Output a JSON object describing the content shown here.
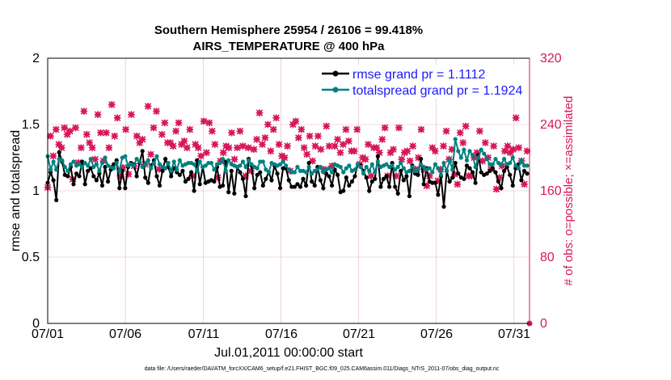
{
  "chart_data": {
    "type": "line",
    "title_line1": "Southern Hemisphere 25954 / 26106 = 99.418%",
    "title_line2": "AIRS_TEMPERATURE @ 400 hPa",
    "xlabel": "Jul.01,2011 00:00:00 start",
    "ylabel_left": "rmse and totalspread",
    "ylabel_right": "# of obs: o=possible; ×=assimilated",
    "footer": "data file: /Users/raeder/DAI/ATM_forcXX/CAM6_setup/f.e21.FHIST_BGC.f09_025.CAM6assim.011/Diags_NTrS_2011-07/obs_diag_output.nc",
    "xlim": [
      0,
      31
    ],
    "ylim_left": [
      0,
      2
    ],
    "ylim_right": [
      0,
      320
    ],
    "x_ticks": [
      0,
      5,
      10,
      15,
      20,
      25,
      30
    ],
    "x_tick_labels": [
      "07/01",
      "07/06",
      "07/11",
      "07/16",
      "07/21",
      "07/26",
      "07/31"
    ],
    "y_left_ticks": [
      "0",
      "0.5",
      "1",
      "1.5",
      "2"
    ],
    "y_right_ticks": [
      "0",
      "80",
      "160",
      "240",
      "320"
    ],
    "legend": [
      "rmse grand pr = 1.1112",
      "totalspread grand pr = 1.1924"
    ],
    "colors": {
      "rmse": "#000000",
      "spread": "#008080",
      "obs": "#d6185a",
      "legend_text": "#1a1aff",
      "grid": "#e6b8b8"
    },
    "series": [
      {
        "name": "rmse",
        "values": [
          1.06,
          1.14,
          1.08,
          0.93,
          1.29,
          1.22,
          1.12,
          1.11,
          1.18,
          1.05,
          1.13,
          1.11,
          1.22,
          1.05,
          1.15,
          1.17,
          1.11,
          1.08,
          1.13,
          1.04,
          1.18,
          1.07,
          1.16,
          1.2,
          1.23,
          1.02,
          1.15,
          1.02,
          1.18,
          1.21,
          1.2,
          1.11,
          1.21,
          1.3,
          1.1,
          1.06,
          1.19,
          1.23,
          1.11,
          1.04,
          1.15,
          1.24,
          1.18,
          1.11,
          1.17,
          1.14,
          1.12,
          1.15,
          1.07,
          1.09,
          1.14,
          1.0,
          1.23,
          1.05,
          1.18,
          1.06,
          1.07,
          1.08,
          1.07,
          1.18,
          1.03,
          1.04,
          1.22,
          0.99,
          1.15,
          0.98,
          1.18,
          1.14,
          1.09,
          0.96,
          1.24,
          1.19,
          1.02,
          1.12,
          1.14,
          1.04,
          1.09,
          1.14,
          1.08,
          1.19,
          1.13,
          1.02,
          1.17,
          1.17,
          1.08,
          1.03,
          1.03,
          1.05,
          1.03,
          1.09,
          1.04,
          1.21,
          1.07,
          1.04,
          1.18,
          1.08,
          1.02,
          1.13,
          1.11,
          1.04,
          1.16,
          1.12,
          0.99,
          1.0,
          1.1,
          1.04,
          1.07,
          1.11,
          1.2,
          1.19,
          1.15,
          1.1,
          1.0,
          1.07,
          1.09,
          1.26,
          1.03,
          1.09,
          1.11,
          1.03,
          1.21,
          1.03,
          0.98,
          1.15,
          1.08,
          1.11,
          0.96,
          1.19,
          1.13,
          1.12,
          1.24,
          1.05,
          1.17,
          1.07,
          1.06,
          1.06,
          0.97,
          1.11,
          0.88,
          1.15,
          1.07,
          1.1,
          1.21,
          1.13,
          1.1,
          1.09,
          1.19,
          1.17,
          1.14,
          1.06,
          1.27,
          1.14,
          1.12,
          1.13,
          1.15,
          1.17,
          1.14,
          1.07,
          1.02,
          1.15,
          1.18,
          1.12,
          1.04,
          1.17,
          1.2,
          1.08,
          1.15,
          1.13
        ]
      },
      {
        "name": "totalspread",
        "values": [
          1.26,
          1.16,
          1.22,
          1.16,
          1.24,
          1.23,
          1.18,
          1.15,
          1.2,
          1.22,
          1.19,
          1.2,
          1.18,
          1.21,
          1.19,
          1.24,
          1.18,
          1.2,
          1.15,
          1.21,
          1.25,
          1.19,
          1.18,
          1.17,
          1.21,
          1.15,
          1.25,
          1.26,
          1.19,
          1.2,
          1.19,
          1.24,
          1.22,
          1.18,
          1.2,
          1.23,
          1.17,
          1.21,
          1.26,
          1.2,
          1.18,
          1.17,
          1.21,
          1.15,
          1.22,
          1.16,
          1.23,
          1.19,
          1.2,
          1.21,
          1.21,
          1.2,
          1.15,
          1.22,
          1.18,
          1.19,
          1.21,
          1.21,
          1.16,
          1.2,
          1.21,
          1.24,
          1.15,
          1.23,
          1.2,
          1.19,
          1.18,
          1.19,
          1.22,
          1.18,
          1.23,
          1.2,
          1.18,
          1.17,
          1.22,
          1.22,
          1.16,
          1.14,
          1.21,
          1.2,
          1.19,
          1.2,
          1.22,
          1.19,
          1.16,
          1.14,
          1.14,
          1.18,
          1.15,
          1.15,
          1.14,
          1.18,
          1.13,
          1.15,
          1.16,
          1.18,
          1.14,
          1.16,
          1.17,
          1.14,
          1.2,
          1.19,
          1.18,
          1.14,
          1.17,
          1.19,
          1.15,
          1.16,
          1.2,
          1.18,
          1.13,
          1.18,
          1.15,
          1.2,
          1.14,
          1.22,
          1.18,
          1.19,
          1.2,
          1.18,
          1.19,
          1.16,
          1.18,
          1.21,
          1.17,
          1.14,
          1.15,
          1.18,
          1.15,
          1.16,
          1.2,
          1.18,
          1.16,
          1.17,
          1.14,
          1.2,
          1.17,
          1.12,
          1.21,
          1.15,
          1.23,
          1.16,
          1.39,
          1.3,
          1.25,
          1.31,
          1.23,
          1.3,
          1.27,
          1.18,
          1.25,
          1.31,
          1.28,
          1.24,
          1.2,
          1.2,
          1.24,
          1.21,
          1.2,
          1.24,
          1.2,
          1.21,
          1.25,
          1.19,
          1.17,
          1.23,
          1.19,
          1.19
        ]
      },
      {
        "name": "obs_possible",
        "values": [
          164,
          226,
          202,
          234,
          216,
          212,
          236,
          228,
          232,
          174,
          236,
          194,
          212,
          256,
          228,
          218,
          212,
          198,
          252,
          230,
          196,
          230,
          212,
          264,
          226,
          248,
          178,
          188,
          234,
          180,
          252,
          190,
          226,
          218,
          222,
          192,
          262,
          204,
          236,
          256,
          186,
          228,
          242,
          218,
          218,
          214,
          232,
          242,
          216,
          220,
          212,
          234,
          178,
          216,
          212,
          202,
          244,
          206,
          242,
          232,
          216,
          176,
          196,
          206,
          214,
          212,
          230,
          198,
          212,
          232,
          214,
          178,
          212,
          184,
          210,
          222,
          254,
          216,
          224,
          240,
          208,
          234,
          248,
          216,
          202,
          200,
          214,
          184,
          240,
          244,
          224,
          234,
          212,
          204,
          226,
          196,
          214,
          226,
          210,
          186,
          238,
          214,
          190,
          214,
          222,
          206,
          216,
          234,
          220,
          208,
          208,
          234,
          192,
          200,
          198,
          216,
          178,
          212,
          212,
          206,
          222,
          236,
          178,
          206,
          210,
          178,
          236,
          198,
          206,
          208,
          196,
          214,
          186,
          200,
          234,
          186,
          166,
          178,
          212,
          208,
          172,
          186,
          214,
          232,
          198,
          210,
          180,
          168,
          230,
          218,
          238,
          178,
          178,
          200,
          206,
          232,
          196,
          218,
          200,
          186,
          214,
          162,
          176,
          190,
          208,
          214,
          206,
          210,
          248,
          212,
          196,
          168,
          208
        ]
      },
      {
        "name": "obs_assimilated",
        "values": [
          164,
          226,
          202,
          234,
          216,
          212,
          236,
          228,
          232,
          174,
          236,
          194,
          212,
          256,
          228,
          218,
          212,
          198,
          252,
          230,
          196,
          230,
          212,
          264,
          226,
          248,
          178,
          188,
          234,
          180,
          252,
          190,
          226,
          218,
          222,
          192,
          262,
          204,
          236,
          256,
          186,
          228,
          242,
          218,
          218,
          214,
          232,
          242,
          216,
          220,
          212,
          234,
          178,
          216,
          212,
          202,
          244,
          206,
          242,
          232,
          216,
          176,
          196,
          206,
          214,
          212,
          230,
          198,
          212,
          232,
          214,
          178,
          212,
          184,
          210,
          222,
          254,
          216,
          224,
          240,
          208,
          234,
          248,
          216,
          202,
          200,
          214,
          184,
          240,
          244,
          224,
          234,
          212,
          204,
          226,
          196,
          214,
          226,
          210,
          186,
          238,
          214,
          190,
          214,
          222,
          206,
          216,
          234,
          220,
          208,
          208,
          234,
          192,
          200,
          198,
          216,
          178,
          212,
          212,
          206,
          222,
          236,
          178,
          206,
          210,
          178,
          236,
          198,
          206,
          208,
          196,
          214,
          186,
          200,
          234,
          186,
          166,
          178,
          212,
          208,
          172,
          186,
          214,
          232,
          198,
          210,
          180,
          168,
          230,
          218,
          238,
          178,
          178,
          200,
          206,
          232,
          196,
          218,
          200,
          186,
          214,
          162,
          176,
          190,
          208,
          214,
          206,
          210,
          248,
          212,
          196,
          168,
          208
        ]
      }
    ]
  }
}
